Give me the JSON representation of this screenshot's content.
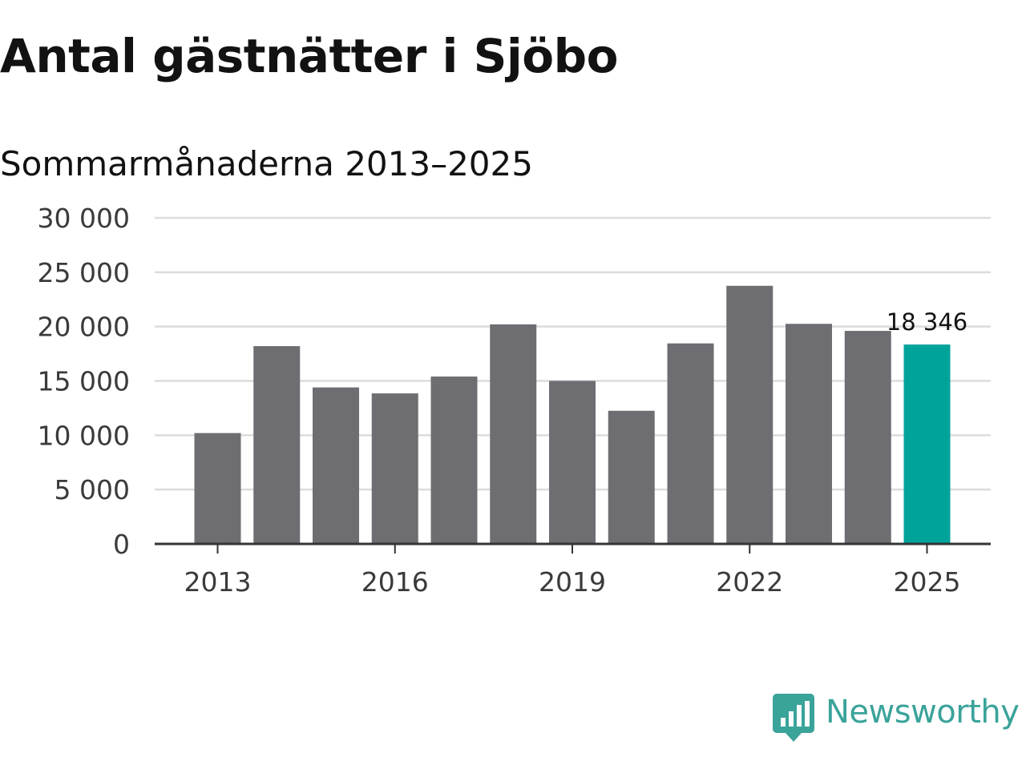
{
  "title": "Antal gästnätter i Sjöbo",
  "subtitle": "Sommarmånaderna 2013–2025",
  "brand": {
    "name": "Newsworthy",
    "icon": "newsworthy-logo-icon",
    "color": "#3aa39a"
  },
  "colors": {
    "bar": "#6e6d72",
    "highlight": "#00a39a",
    "grid": "#dcdcdc",
    "axis": "#333333"
  },
  "chart_data": {
    "type": "bar",
    "categories": [
      "2013",
      "2014",
      "2015",
      "2016",
      "2017",
      "2018",
      "2019",
      "2020",
      "2021",
      "2022",
      "2023",
      "2024",
      "2025"
    ],
    "values": [
      10200,
      18200,
      14400,
      13850,
      15400,
      20200,
      15000,
      12250,
      18450,
      23750,
      20250,
      19600,
      18346
    ],
    "highlight_index": 12,
    "data_labels": [
      {
        "index": 12,
        "text": "18 346"
      }
    ],
    "title": "Antal gästnätter i Sjöbo",
    "subtitle": "Sommarmånaderna 2013–2025",
    "xlabel": "",
    "ylabel": "",
    "ylim": [
      0,
      30000
    ],
    "y_ticks": [
      0,
      5000,
      10000,
      15000,
      20000,
      25000,
      30000
    ],
    "y_tick_labels": [
      "0",
      "5 000",
      "10 000",
      "15 000",
      "20 000",
      "25 000",
      "30 000"
    ],
    "x_tick_labels": [
      "2013",
      "2016",
      "2019",
      "2022",
      "2025"
    ],
    "grid": true,
    "legend": false
  }
}
